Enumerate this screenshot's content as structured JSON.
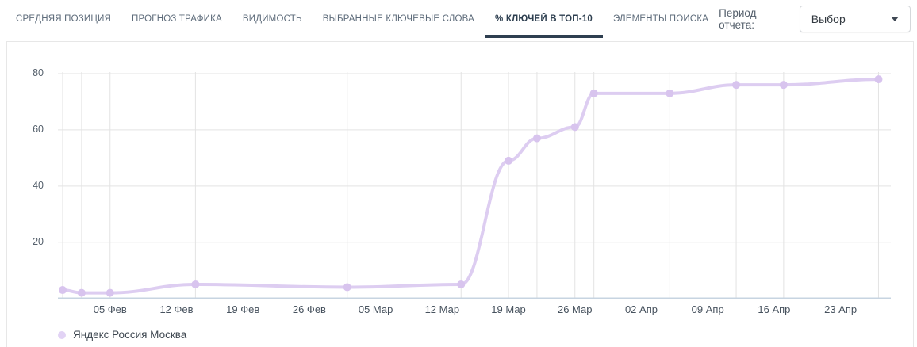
{
  "header": {
    "tabs": [
      {
        "id": "average-position",
        "label": "СРЕДНЯЯ ПОЗИЦИЯ",
        "active": false
      },
      {
        "id": "traffic-forecast",
        "label": "ПРОГНОЗ ТРАФИКА",
        "active": false
      },
      {
        "id": "visibility",
        "label": "ВИДИМОСТЬ",
        "active": false
      },
      {
        "id": "selected-keywords",
        "label": "ВЫБРАННЫЕ КЛЮЧЕВЫЕ СЛОВА",
        "active": false
      },
      {
        "id": "keys-in-top10",
        "label": "% КЛЮЧЕЙ В ТОП-10",
        "active": true
      },
      {
        "id": "search-elements",
        "label": "ЭЛЕМЕНТЫ ПОИСКА",
        "active": false
      }
    ],
    "report_period": {
      "label": "Период отчета:",
      "value": "Выбор"
    }
  },
  "legend": {
    "items": [
      {
        "label": "Яндекс Россия Москва",
        "color": "#e2d3f5"
      }
    ]
  },
  "colors": {
    "accent": "#2e3f50",
    "line": "#ddcdf1",
    "marker": "#d8c4ee",
    "grid": "#e3e3e3",
    "axis_baseline": "#c7d4e1",
    "card_border": "#e7e7e7"
  },
  "chart_data": {
    "type": "line",
    "title": "",
    "xlabel": "",
    "ylabel": "",
    "x_unit": "days relative to the «05 Фев» tick (dates read off weekly axis ticks)",
    "xticks": [
      {
        "day": 0,
        "label": "05 Фев"
      },
      {
        "day": 7,
        "label": "12 Фев"
      },
      {
        "day": 14,
        "label": "19 Фев"
      },
      {
        "day": 21,
        "label": "26 Фев"
      },
      {
        "day": 28,
        "label": "05 Мар"
      },
      {
        "day": 35,
        "label": "12 Мар"
      },
      {
        "day": 42,
        "label": "19 Мар"
      },
      {
        "day": 49,
        "label": "26 Мар"
      },
      {
        "day": 56,
        "label": "02 Апр"
      },
      {
        "day": 63,
        "label": "09 Апр"
      },
      {
        "day": 70,
        "label": "16 Апр"
      },
      {
        "day": 77,
        "label": "23 Апр"
      }
    ],
    "yticks": [
      20,
      40,
      60,
      80
    ],
    "ylim": [
      0,
      80
    ],
    "xlim_days": [
      -5.5,
      82.3
    ],
    "grid": {
      "horizontal": "at yticks",
      "vertical": "at every data point (check dates)"
    },
    "legend_position": "bottom-left",
    "series": [
      {
        "name": "Яндекс Россия Москва",
        "points": [
          {
            "day": -5,
            "value": 3
          },
          {
            "day": -3,
            "value": 2
          },
          {
            "day": 0,
            "value": 2
          },
          {
            "day": 9,
            "value": 5
          },
          {
            "day": 25,
            "value": 4
          },
          {
            "day": 37,
            "value": 5
          },
          {
            "day": 42,
            "value": 49
          },
          {
            "day": 45,
            "value": 57
          },
          {
            "day": 49,
            "value": 61
          },
          {
            "day": 51,
            "value": 73
          },
          {
            "day": 59,
            "value": 73
          },
          {
            "day": 66,
            "value": 76
          },
          {
            "day": 71,
            "value": 76
          },
          {
            "day": 81,
            "value": 78
          }
        ]
      }
    ]
  }
}
